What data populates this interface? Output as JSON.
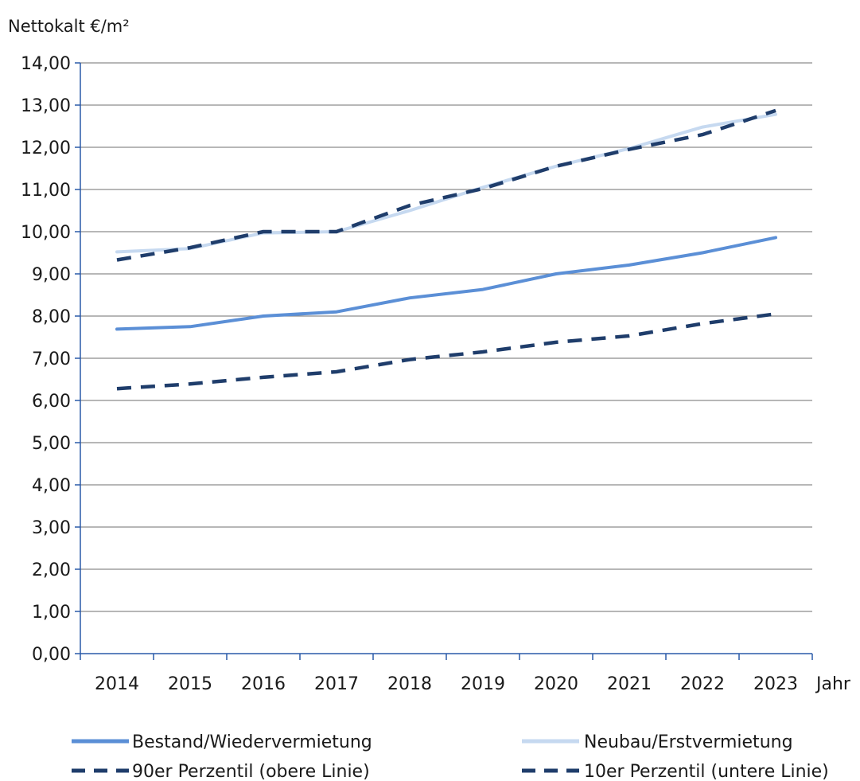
{
  "chart_data": {
    "type": "line",
    "ylabel": "Nettokalt €/m²",
    "xlabel": "Jahr",
    "categories": [
      "2014",
      "2015",
      "2016",
      "2017",
      "2018",
      "2019",
      "2020",
      "2021",
      "2022",
      "2023"
    ],
    "ylim": [
      0,
      14
    ],
    "yticks": [
      "0,00",
      "1,00",
      "2,00",
      "3,00",
      "4,00",
      "5,00",
      "6,00",
      "7,00",
      "8,00",
      "9,00",
      "10,00",
      "11,00",
      "12,00",
      "13,00",
      "14,00"
    ],
    "grid": true,
    "legend_position": "bottom",
    "series": [
      {
        "name": "Bestand/Wiedervermietung",
        "style": "solid",
        "color": "#5b8fd6",
        "values": [
          7.69,
          7.75,
          8.0,
          8.1,
          8.43,
          8.63,
          9.0,
          9.21,
          9.5,
          9.86
        ]
      },
      {
        "name": "Neubau/Erstvermietung",
        "style": "solid",
        "color": "#c6d9f0",
        "values": [
          9.52,
          9.6,
          9.97,
          10.0,
          10.5,
          11.05,
          11.55,
          11.97,
          12.48,
          12.78
        ]
      },
      {
        "name": "90er Perzentil (obere Linie)",
        "style": "dashed",
        "color": "#1f3d6b",
        "values": [
          9.33,
          9.62,
          10.0,
          10.0,
          10.62,
          11.02,
          11.55,
          11.95,
          12.3,
          12.87
        ]
      },
      {
        "name": "10er Perzentil (untere Linie)",
        "style": "dashed",
        "color": "#1f3d6b",
        "values": [
          6.28,
          6.39,
          6.55,
          6.68,
          6.97,
          7.15,
          7.38,
          7.53,
          7.82,
          8.05
        ]
      }
    ]
  }
}
